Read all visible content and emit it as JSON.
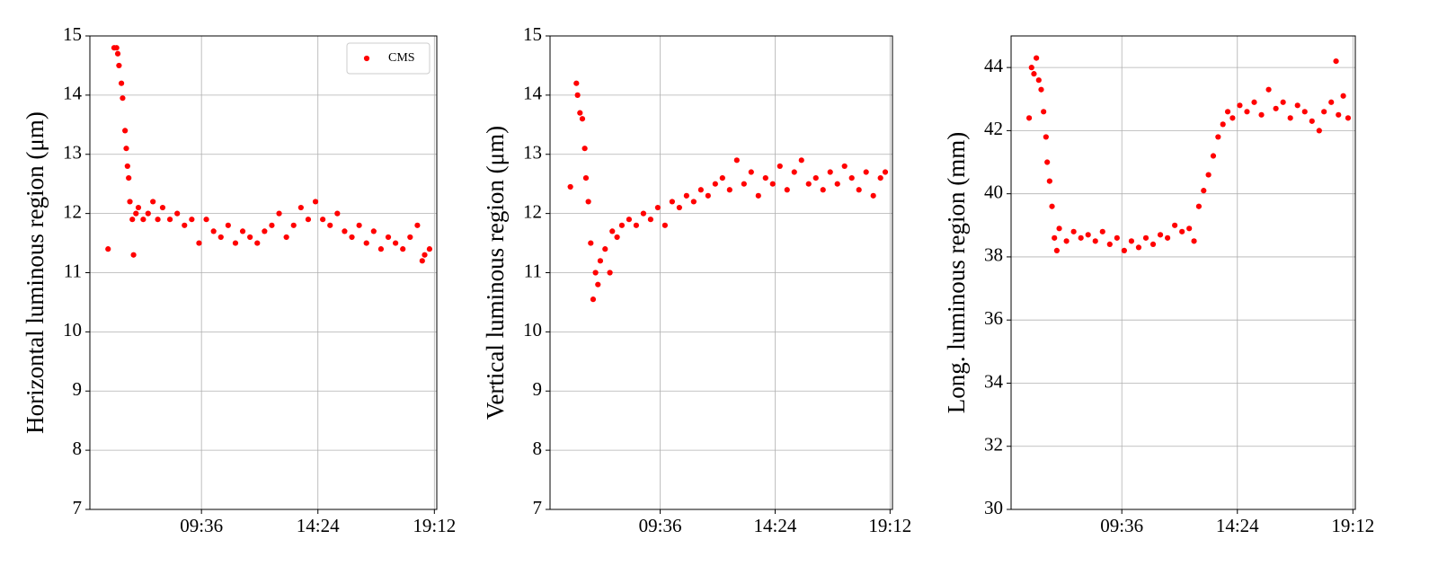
{
  "chart_data": [
    {
      "type": "scatter",
      "ylabel": "Horizontal luminous region (μm)",
      "x": [
        5.75,
        6.0,
        6.1,
        6.15,
        6.2,
        6.3,
        6.35,
        6.45,
        6.5,
        6.55,
        6.6,
        6.65,
        6.75,
        6.8,
        6.9,
        7.0,
        7.2,
        7.4,
        7.6,
        7.8,
        8.0,
        8.3,
        8.6,
        8.9,
        9.2,
        9.5,
        9.8,
        10.1,
        10.4,
        10.7,
        11.0,
        11.3,
        11.6,
        11.9,
        12.2,
        12.5,
        12.8,
        13.1,
        13.4,
        13.7,
        14.0,
        14.3,
        14.6,
        14.9,
        15.2,
        15.5,
        15.8,
        16.1,
        16.4,
        16.7,
        17.0,
        17.3,
        17.6,
        17.9,
        18.2,
        18.5,
        18.7,
        18.8,
        19.0
      ],
      "series": [
        {
          "name": "CMS",
          "color": "#ff0000",
          "values": [
            11.4,
            14.8,
            14.8,
            14.7,
            14.5,
            14.2,
            13.95,
            13.4,
            13.1,
            12.8,
            12.6,
            12.2,
            11.9,
            11.3,
            12.0,
            12.1,
            11.9,
            12.0,
            12.2,
            11.9,
            12.1,
            11.9,
            12.0,
            11.8,
            11.9,
            11.5,
            11.9,
            11.7,
            11.6,
            11.8,
            11.5,
            11.7,
            11.6,
            11.5,
            11.7,
            11.8,
            12.0,
            11.6,
            11.8,
            12.1,
            11.9,
            12.2,
            11.9,
            11.8,
            12.0,
            11.7,
            11.6,
            11.8,
            11.5,
            11.7,
            11.4,
            11.6,
            11.5,
            11.4,
            11.6,
            11.8,
            11.2,
            11.3,
            11.4
          ]
        }
      ],
      "xlim": [
        5.0,
        19.3
      ],
      "xticks": [
        {
          "value": 9.6,
          "label": "09:36"
        },
        {
          "value": 14.4,
          "label": "14:24"
        },
        {
          "value": 19.2,
          "label": "19:12"
        }
      ],
      "ylim": [
        7,
        15
      ],
      "yticks": [
        7,
        8,
        9,
        10,
        11,
        12,
        13,
        14,
        15
      ],
      "grid": true,
      "legend": "upper right"
    },
    {
      "type": "scatter",
      "ylabel": "Vertical luminous region (μm)",
      "x": [
        5.85,
        6.1,
        6.15,
        6.25,
        6.35,
        6.45,
        6.5,
        6.6,
        6.7,
        6.8,
        6.9,
        7.0,
        7.1,
        7.3,
        7.5,
        7.6,
        7.8,
        8.0,
        8.3,
        8.6,
        8.9,
        9.2,
        9.5,
        9.8,
        10.1,
        10.4,
        10.7,
        11.0,
        11.3,
        11.6,
        11.9,
        12.2,
        12.5,
        12.8,
        13.1,
        13.4,
        13.7,
        14.0,
        14.3,
        14.6,
        14.9,
        15.2,
        15.5,
        15.8,
        16.1,
        16.4,
        16.7,
        17.0,
        17.3,
        17.6,
        17.9,
        18.2,
        18.5,
        18.8,
        19.0
      ],
      "series": [
        {
          "color": "#ff0000",
          "values": [
            12.45,
            14.2,
            14.0,
            13.7,
            13.6,
            13.1,
            12.6,
            12.2,
            11.5,
            10.55,
            11.0,
            10.8,
            11.2,
            11.4,
            11.0,
            11.7,
            11.6,
            11.8,
            11.9,
            11.8,
            12.0,
            11.9,
            12.1,
            11.8,
            12.2,
            12.1,
            12.3,
            12.2,
            12.4,
            12.3,
            12.5,
            12.6,
            12.4,
            12.9,
            12.5,
            12.7,
            12.3,
            12.6,
            12.5,
            12.8,
            12.4,
            12.7,
            12.9,
            12.5,
            12.6,
            12.4,
            12.7,
            12.5,
            12.8,
            12.6,
            12.4,
            12.7,
            12.3,
            12.6,
            12.7
          ]
        }
      ],
      "xlim": [
        5.0,
        19.3
      ],
      "xticks": [
        {
          "value": 9.6,
          "label": "09:36"
        },
        {
          "value": 14.4,
          "label": "14:24"
        },
        {
          "value": 19.2,
          "label": "19:12"
        }
      ],
      "ylim": [
        7,
        15
      ],
      "yticks": [
        7,
        8,
        9,
        10,
        11,
        12,
        13,
        14,
        15
      ],
      "grid": true
    },
    {
      "type": "scatter",
      "ylabel": "Long. luminous region (mm)",
      "x": [
        5.75,
        5.85,
        5.95,
        6.05,
        6.15,
        6.25,
        6.35,
        6.45,
        6.5,
        6.6,
        6.7,
        6.8,
        6.9,
        7.0,
        7.3,
        7.6,
        7.9,
        8.2,
        8.5,
        8.8,
        9.1,
        9.4,
        9.7,
        10.0,
        10.3,
        10.6,
        10.9,
        11.2,
        11.5,
        11.8,
        12.1,
        12.4,
        12.6,
        12.8,
        13.0,
        13.2,
        13.4,
        13.6,
        13.8,
        14.0,
        14.2,
        14.5,
        14.8,
        15.1,
        15.4,
        15.7,
        16.0,
        16.3,
        16.6,
        16.9,
        17.2,
        17.5,
        17.8,
        18.0,
        18.3,
        18.5,
        18.6,
        18.8,
        19.0
      ],
      "series": [
        {
          "color": "#ff0000",
          "values": [
            42.4,
            44.0,
            43.8,
            44.3,
            43.6,
            43.3,
            42.6,
            41.8,
            41.0,
            40.4,
            39.6,
            38.6,
            38.2,
            38.9,
            38.5,
            38.8,
            38.6,
            38.7,
            38.5,
            38.8,
            38.4,
            38.6,
            38.2,
            38.5,
            38.3,
            38.6,
            38.4,
            38.7,
            38.6,
            39.0,
            38.8,
            38.9,
            38.5,
            39.6,
            40.1,
            40.6,
            41.2,
            41.8,
            42.2,
            42.6,
            42.4,
            42.8,
            42.6,
            42.9,
            42.5,
            43.3,
            42.7,
            42.9,
            42.4,
            42.8,
            42.6,
            42.3,
            42.0,
            42.6,
            42.9,
            44.2,
            42.5,
            43.1,
            42.4
          ]
        }
      ],
      "xlim": [
        5.0,
        19.3
      ],
      "xticks": [
        {
          "value": 9.6,
          "label": "09:36"
        },
        {
          "value": 14.4,
          "label": "14:24"
        },
        {
          "value": 19.2,
          "label": "19:12"
        }
      ],
      "ylim": [
        30,
        45
      ],
      "yticks": [
        30,
        32,
        34,
        36,
        38,
        40,
        42,
        44
      ],
      "grid": true
    }
  ]
}
